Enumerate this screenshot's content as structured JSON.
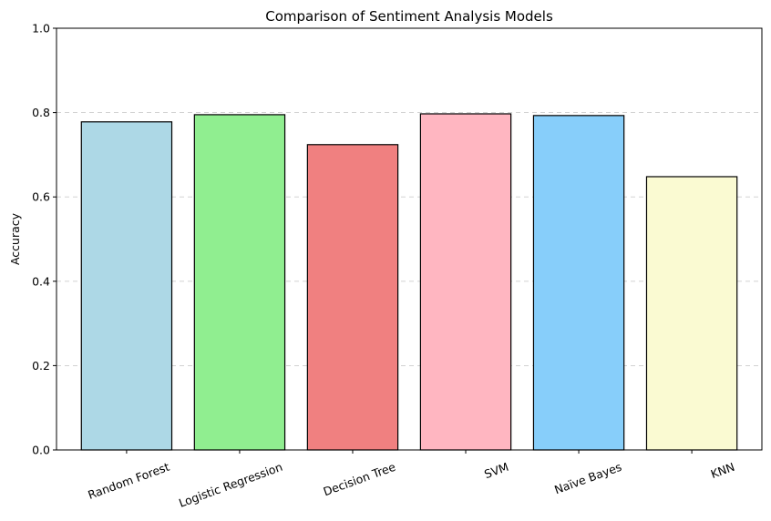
{
  "chart_data": {
    "type": "bar",
    "title": "Comparison of Sentiment Analysis Models",
    "xlabel": "",
    "ylabel": "Accuracy",
    "categories": [
      "Random Forest",
      "Logistic Regression",
      "Decision Tree",
      "SVM",
      "Naïve Bayes",
      "KNN"
    ],
    "values": [
      0.778,
      0.795,
      0.724,
      0.797,
      0.793,
      0.648
    ],
    "colors": [
      "#add8e6",
      "#90ee90",
      "#f08080",
      "#ffb6c1",
      "#87cefa",
      "#fafad2"
    ],
    "ylim": [
      0,
      1
    ],
    "yticks": [
      "0.0",
      "0.2",
      "0.4",
      "0.6",
      "0.8",
      "1.0"
    ],
    "grid": "y-dashed",
    "legend": "none"
  }
}
